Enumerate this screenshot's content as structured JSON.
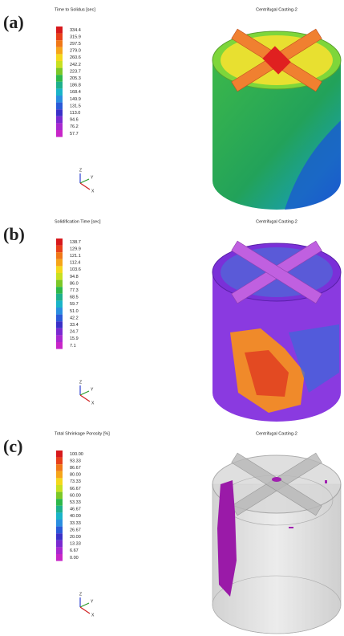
{
  "panels": [
    {
      "label": "(a)",
      "legend_title": "Time to Solidus [sec]",
      "model_title": "Centrifugal Casting-2",
      "legend_values": [
        "334.4",
        "315.9",
        "297.5",
        "279.0",
        "260.6",
        "242.2",
        "223.7",
        "205.3",
        "186.8",
        "168.4",
        "149.9",
        "131.5",
        "113.0",
        "94.6",
        "76.2",
        "57.7"
      ],
      "axes": [
        "Z",
        "Y",
        "X"
      ]
    },
    {
      "label": "(b)",
      "legend_title": "Solidification Time [sec]",
      "model_title": "Centrifugal Casting-2",
      "legend_values": [
        "138.7",
        "129.9",
        "121.1",
        "112.4",
        "103.6",
        "94.8",
        "86.0",
        "77.3",
        "68.5",
        "59.7",
        "51.0",
        "42.2",
        "33.4",
        "24.7",
        "15.9",
        "7.1"
      ],
      "axes": [
        "Z",
        "Y",
        "X"
      ]
    },
    {
      "label": "(c)",
      "legend_title": "Total Shrinkage Porosity [%]",
      "model_title": "Centrifugal Casting-2",
      "legend_values": [
        "100.00",
        "93.33",
        "86.67",
        "80.00",
        "73.33",
        "66.67",
        "60.00",
        "53.33",
        "46.67",
        "40.00",
        "33.33",
        "26.67",
        "20.00",
        "13.33",
        "6.67",
        "0.00"
      ],
      "axes": [
        "Z",
        "Y",
        "X"
      ]
    }
  ]
}
